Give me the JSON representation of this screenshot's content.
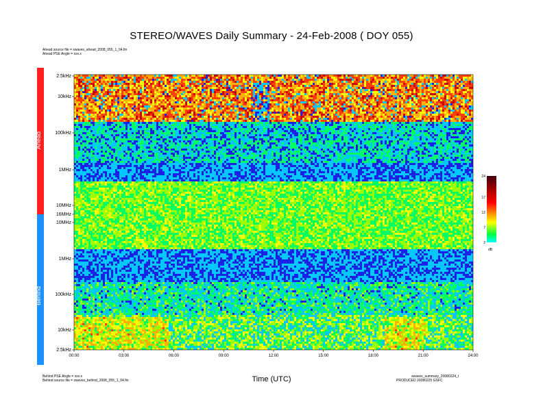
{
  "header": {
    "title": "STEREO/WAVES Daily Summary - 24-Feb-2008 ( DOY 055)",
    "ahead_source": "Ahead source file = swaves_ahead_2008_055_1_04.fin",
    "ahead_pse": "Ahead PSE Angle = xxx.x"
  },
  "footer": {
    "behind_pse": "Behind PSE Angle = xxx.x",
    "behind_source": "Behind source file = swaves_behind_2008_055_1_04.fin",
    "summary_file": "swaves_summary_20080224_t",
    "production": "PRODUCED 20080225 GSFC"
  },
  "chart_data": {
    "type": "heatmap",
    "title": "STEREO/WAVES Daily Summary - 24-Feb-2008 ( DOY 055)",
    "xlabel": "Time (UTC)",
    "x_ticks": [
      "00:00",
      "03:00",
      "06:00",
      "09:00",
      "12:00",
      "15:00",
      "18:00",
      "21:00",
      "24:00"
    ],
    "xlim_hours": [
      0,
      24
    ],
    "panels": [
      {
        "name": "Ahead",
        "color": "#ff2020",
        "y_ticks": [
          "2.5kHz",
          "10kHz",
          "100kHz",
          "1MHz",
          "10MHz",
          "16MHz"
        ]
      },
      {
        "name": "Behind",
        "color": "#1e90ff",
        "y_ticks": [
          "10MHz",
          "1MHz",
          "100kHz",
          "10kHz",
          "2.5kHz"
        ]
      }
    ],
    "colorbar": {
      "unit": "dB",
      "ticks": [
        2,
        7,
        12,
        17,
        24
      ],
      "range": [
        2,
        24
      ]
    }
  }
}
